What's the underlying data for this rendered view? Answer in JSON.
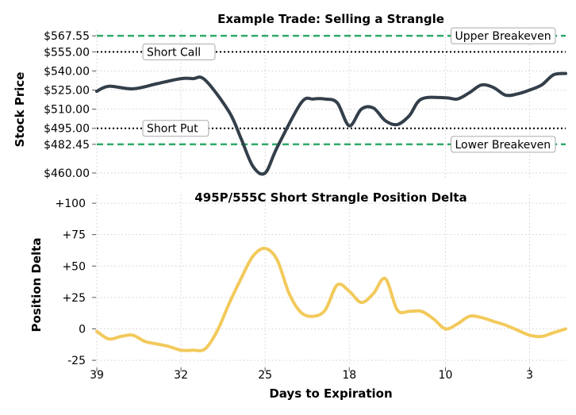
{
  "chart_data": [
    {
      "type": "line",
      "title": "Example Trade: Selling a Strangle",
      "ylabel": "Stock Price",
      "xlabel": "",
      "ylim": [
        455,
        572
      ],
      "x_reversed": true,
      "grid": true,
      "yticks": [
        {
          "value": 567.55,
          "label": "$567.55"
        },
        {
          "value": 555,
          "label": "$555.00"
        },
        {
          "value": 540,
          "label": "$540.00"
        },
        {
          "value": 525,
          "label": "$525.00"
        },
        {
          "value": 510,
          "label": "$510.00"
        },
        {
          "value": 495,
          "label": "$495.00"
        },
        {
          "value": 482.45,
          "label": "$482.45"
        },
        {
          "value": 460,
          "label": "$460.00"
        }
      ],
      "levels": [
        {
          "value": 567.55,
          "label": "Upper Breakeven",
          "style": "dashed",
          "color": "#2eaa6a",
          "label_side": "right"
        },
        {
          "value": 555,
          "label": "Short Call",
          "style": "dotted",
          "color": "#000000",
          "label_side": "left"
        },
        {
          "value": 495,
          "label": "Short Put",
          "style": "dotted",
          "color": "#000000",
          "label_side": "left"
        },
        {
          "value": 482.45,
          "label": "Lower Breakeven",
          "style": "dashed",
          "color": "#2eaa6a",
          "label_side": "right"
        }
      ],
      "series": [
        {
          "color": "#333f4a",
          "x": [
            39,
            38,
            36,
            34,
            32,
            31,
            30,
            28,
            27,
            26,
            25,
            24,
            22,
            21,
            20,
            19,
            18,
            17,
            16,
            15,
            14,
            13,
            12,
            10,
            9,
            8,
            7,
            6,
            5,
            4,
            3,
            2,
            1,
            0
          ],
          "y": [
            524,
            528,
            526,
            530,
            534,
            534,
            533,
            508,
            487,
            465,
            460,
            480,
            515,
            518,
            518,
            515,
            497,
            510,
            511,
            501,
            498,
            505,
            518,
            519,
            518,
            523,
            529,
            527,
            521,
            522,
            525,
            529,
            537,
            538
          ]
        }
      ]
    },
    {
      "type": "line",
      "title": "495P/555C Short Strangle Position Delta",
      "ylabel": "Position Delta",
      "xlabel": "Days to Expiration",
      "ylim": [
        -30,
        107
      ],
      "x_reversed": true,
      "grid": true,
      "yticks": [
        {
          "value": 100,
          "label": "+100"
        },
        {
          "value": 75,
          "label": "+75"
        },
        {
          "value": 50,
          "label": "+50"
        },
        {
          "value": 25,
          "label": "+25"
        },
        {
          "value": 0,
          "label": "0"
        },
        {
          "value": -25,
          "label": "-25"
        }
      ],
      "xticks": [
        {
          "value": 39,
          "label": "39"
        },
        {
          "value": 32,
          "label": "32"
        },
        {
          "value": 25,
          "label": "25"
        },
        {
          "value": 18,
          "label": "18"
        },
        {
          "value": 10,
          "label": "10"
        },
        {
          "value": 3,
          "label": "3"
        }
      ],
      "series": [
        {
          "color": "#f2ca5c",
          "x": [
            39,
            38,
            37,
            36,
            35,
            34,
            33,
            32,
            31,
            30,
            29,
            28,
            27,
            26,
            25,
            24,
            23,
            22,
            21,
            20,
            19,
            18,
            17,
            16,
            15,
            14,
            13,
            12,
            11,
            10,
            9,
            8,
            7,
            6,
            5,
            4,
            3,
            2,
            1,
            0
          ],
          "y": [
            -2,
            -8,
            -6,
            -5,
            -10,
            -12,
            -14,
            -17,
            -17,
            -16,
            -2,
            20,
            40,
            58,
            64,
            55,
            28,
            13,
            10,
            15,
            35,
            30,
            21,
            28,
            40,
            15,
            14,
            14,
            8,
            0,
            4,
            10,
            9,
            6,
            3,
            -1,
            -5,
            -6,
            -3,
            0
          ]
        }
      ]
    }
  ]
}
